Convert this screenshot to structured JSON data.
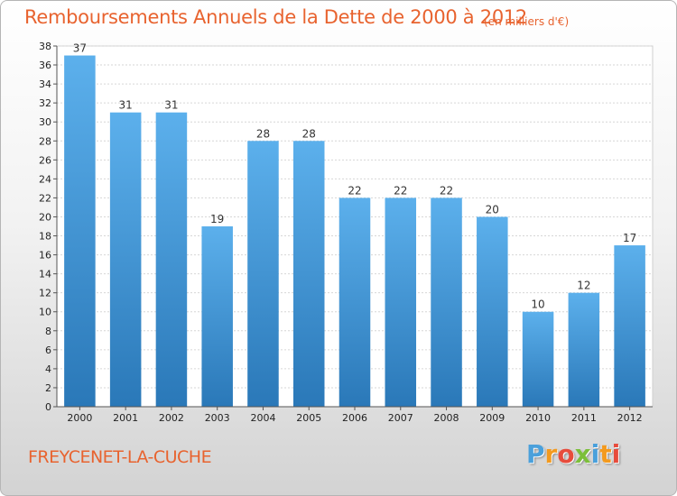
{
  "title": "Remboursements Annuels de la Dette de 2000 à 2012",
  "subtitle": "(en milliers d'€)",
  "commune": "FREYCENET-LA-CUCHE",
  "logo": {
    "text": "Proxiti",
    "letters": [
      "P",
      "r",
      "o",
      "x",
      "i",
      "t",
      "i"
    ],
    "colors": [
      "#4aa0db",
      "#f39a1e",
      "#e74c3c",
      "#7cbf3a",
      "#4aa0db",
      "#f39a1e",
      "#e74c3c"
    ]
  },
  "colors": {
    "accent": "#e8632f",
    "bar_top": "#5cb0ec",
    "bar_bottom": "#2a78b8"
  },
  "chart_data": {
    "type": "bar",
    "categories": [
      "2000",
      "2001",
      "2002",
      "2003",
      "2004",
      "2005",
      "2006",
      "2007",
      "2008",
      "2009",
      "2010",
      "2011",
      "2012"
    ],
    "values": [
      37,
      31,
      31,
      19,
      28,
      28,
      22,
      22,
      22,
      20,
      10,
      12,
      17
    ],
    "ylim": [
      0,
      38
    ],
    "yticks": [
      0,
      2,
      4,
      6,
      8,
      10,
      12,
      14,
      16,
      18,
      20,
      22,
      24,
      26,
      28,
      30,
      32,
      34,
      36,
      38
    ],
    "grid": true,
    "title": "Remboursements Annuels de la Dette de 2000 à 2012",
    "xlabel": "",
    "ylabel": ""
  }
}
